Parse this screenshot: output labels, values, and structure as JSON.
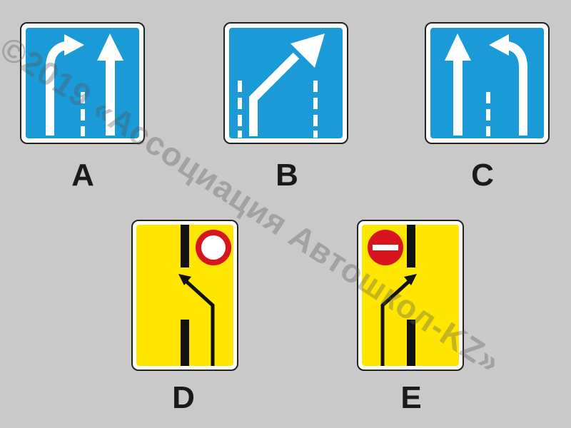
{
  "signs": [
    {
      "letter": "A",
      "type": "lane-sign-blue",
      "description_icon": "lane-arrows-left-curve-icon"
    },
    {
      "letter": "B",
      "type": "lane-sign-blue",
      "description_icon": "lane-shift-right-icon"
    },
    {
      "letter": "C",
      "type": "lane-sign-blue",
      "description_icon": "lane-arrows-right-curve-icon"
    },
    {
      "letter": "D",
      "type": "temporary-sign-yellow",
      "description_icon": "lane-bypass-left-icon"
    },
    {
      "letter": "E",
      "type": "temporary-sign-yellow",
      "description_icon": "lane-bypass-right-icon"
    }
  ],
  "watermark": "©2019 «Ассоциация Автошкол-KZ»",
  "colors": {
    "background": "#c9c9c9",
    "sign_blue": "#1a9ad6",
    "sign_yellow": "#ffe600",
    "prohibition_red": "#d8141e"
  }
}
